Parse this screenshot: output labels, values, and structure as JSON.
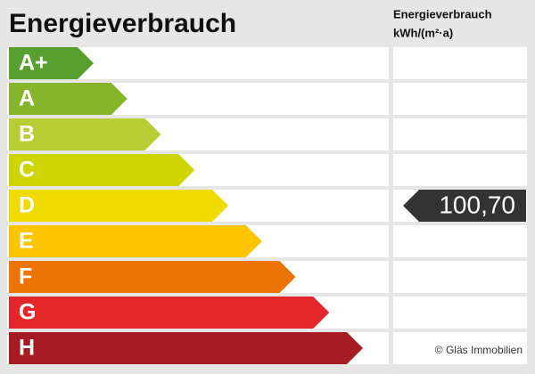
{
  "title": "Energieverbrauch",
  "column_header": {
    "line1": "Energieverbrauch",
    "line2": "kWh/(m²·a)"
  },
  "classes": [
    {
      "label": "A+",
      "color": "#57a02f"
    },
    {
      "label": "A",
      "color": "#86b42b"
    },
    {
      "label": "B",
      "color": "#b8cc34"
    },
    {
      "label": "C",
      "color": "#cdd400"
    },
    {
      "label": "D",
      "color": "#efdb00",
      "value": "100,70"
    },
    {
      "label": "E",
      "color": "#fcc500"
    },
    {
      "label": "F",
      "color": "#ec7404"
    },
    {
      "label": "G",
      "color": "#e2262a"
    },
    {
      "label": "H",
      "color": "#a61c24"
    }
  ],
  "copyright": "© Gläs Immobilien"
}
